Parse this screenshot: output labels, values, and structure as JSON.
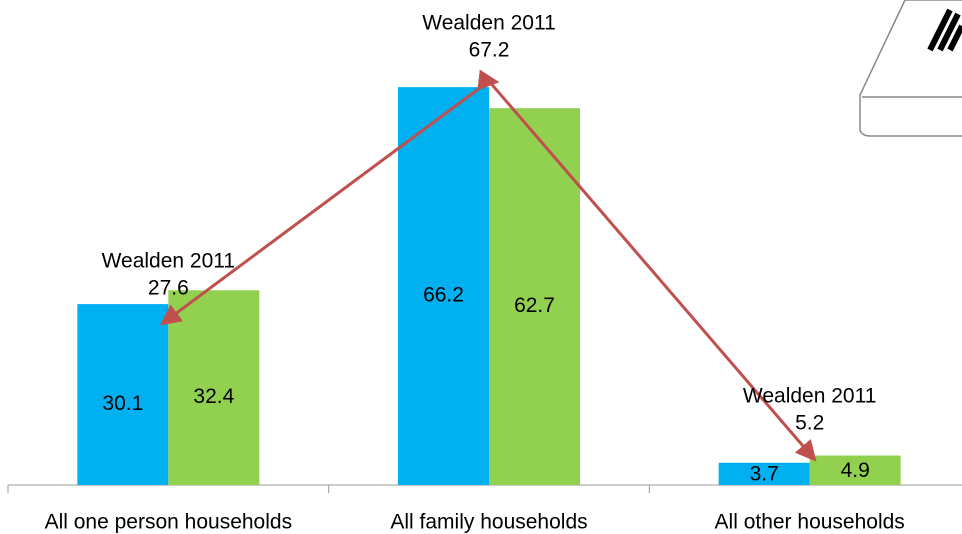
{
  "chart_data": {
    "type": "bar",
    "categories": [
      "All one person households",
      "All family households",
      "All other households"
    ],
    "series": [
      {
        "color": "#00b0f0",
        "values": [
          30.1,
          66.2,
          3.7
        ]
      },
      {
        "color": "#92d050",
        "values": [
          32.4,
          62.7,
          4.9
        ]
      },
      {
        "name": "Wealden 2011",
        "type": "line",
        "color": "#c0504d",
        "values": [
          27.6,
          67.2,
          5.2
        ]
      }
    ],
    "ylim": [
      0,
      80
    ]
  }
}
